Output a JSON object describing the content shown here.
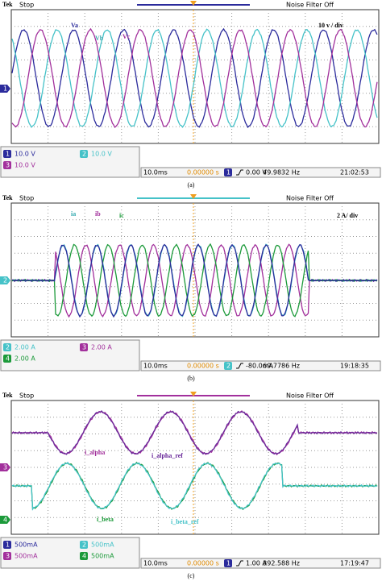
{
  "panels": [
    {
      "brand": "Tek",
      "status": "Stop",
      "filter": "Noise Filter Off",
      "ground_marker": "1",
      "labels": [
        "Va",
        "Vb",
        "Vc",
        "10 v / div"
      ],
      "channels": [
        {
          "num": "1",
          "value": "10.0 V"
        },
        {
          "num": "2",
          "value": "10.0 V"
        },
        {
          "num": "3",
          "value": "10.0 V"
        }
      ],
      "timebase": "10.0ms",
      "position": "0.00000 s",
      "trigger_channel": "1",
      "trigger_level": "0.00 V",
      "frequency": "49.9832 Hz",
      "time": "21:02:53",
      "caption": "(a)"
    },
    {
      "brand": "Tek",
      "status": "Stop",
      "filter": "Noise Filter Off",
      "ground_marker": "2",
      "labels": [
        "ia",
        "ib",
        "ic",
        "2 A/ div"
      ],
      "channels": [
        {
          "num": "2",
          "value": "2.00 A"
        },
        {
          "num": "3",
          "value": "2.00 A"
        },
        {
          "num": "4",
          "value": "2.00 A"
        }
      ],
      "timebase": "10.0ms",
      "position": "0.00000 s",
      "trigger_channel": "2",
      "trigger_level": "-80.0mA",
      "frequency": "69.7786 Hz",
      "time": "19:18:35",
      "caption": "(b)"
    },
    {
      "brand": "Tek",
      "status": "Stop",
      "filter": "Noise Filter Off",
      "ground_marker": "3",
      "ground_marker_2": "4",
      "labels": [
        "i_alpha",
        "i_alpha_ref",
        "i_beta",
        "i_beta_ref"
      ],
      "channels": [
        {
          "num": "1",
          "value": "500mA"
        },
        {
          "num": "2",
          "value": "500mA"
        },
        {
          "num": "3",
          "value": "500mA"
        },
        {
          "num": "4",
          "value": "500mA"
        }
      ],
      "timebase": "10.0ms",
      "position": "0.00000 s",
      "trigger_channel": "1",
      "trigger_level": "1.00 A",
      "frequency": "392.588 Hz",
      "time": "17:19:47",
      "caption": "(c)"
    }
  ]
}
